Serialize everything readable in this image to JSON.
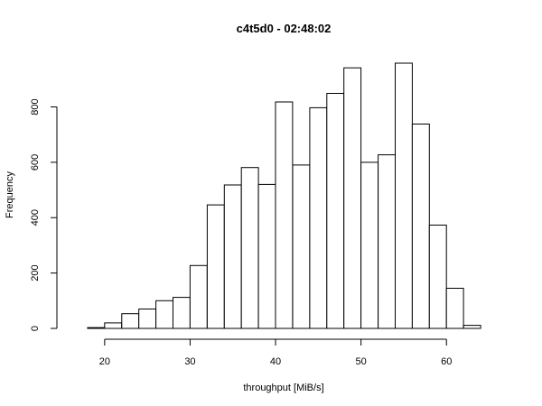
{
  "chart_data": {
    "type": "bar",
    "title": "c4t5d0 - 02:48:02",
    "xlabel": "throughput [MiB/s]",
    "ylabel": "Frequency",
    "bin_width": 2,
    "bins": [
      {
        "x0": 16,
        "x1": 18,
        "count": 0
      },
      {
        "x0": 18,
        "x1": 20,
        "count": 3
      },
      {
        "x0": 20,
        "x1": 22,
        "count": 20
      },
      {
        "x0": 22,
        "x1": 24,
        "count": 53
      },
      {
        "x0": 24,
        "x1": 26,
        "count": 70
      },
      {
        "x0": 26,
        "x1": 28,
        "count": 100
      },
      {
        "x0": 28,
        "x1": 30,
        "count": 112
      },
      {
        "x0": 30,
        "x1": 32,
        "count": 227
      },
      {
        "x0": 32,
        "x1": 34,
        "count": 446
      },
      {
        "x0": 34,
        "x1": 36,
        "count": 518
      },
      {
        "x0": 36,
        "x1": 38,
        "count": 581
      },
      {
        "x0": 38,
        "x1": 40,
        "count": 520
      },
      {
        "x0": 40,
        "x1": 42,
        "count": 818
      },
      {
        "x0": 42,
        "x1": 44,
        "count": 590
      },
      {
        "x0": 44,
        "x1": 46,
        "count": 797
      },
      {
        "x0": 46,
        "x1": 48,
        "count": 849
      },
      {
        "x0": 48,
        "x1": 50,
        "count": 941
      },
      {
        "x0": 50,
        "x1": 52,
        "count": 600
      },
      {
        "x0": 52,
        "x1": 54,
        "count": 627
      },
      {
        "x0": 54,
        "x1": 56,
        "count": 958
      },
      {
        "x0": 56,
        "x1": 58,
        "count": 738
      },
      {
        "x0": 58,
        "x1": 60,
        "count": 373
      },
      {
        "x0": 60,
        "x1": 62,
        "count": 145
      },
      {
        "x0": 62,
        "x1": 64,
        "count": 11
      },
      {
        "x0": 64,
        "x1": 66,
        "count": 0
      }
    ],
    "x_ticks": [
      20,
      30,
      40,
      50,
      60
    ],
    "y_ticks": [
      0,
      200,
      400,
      600,
      800
    ],
    "xlim": [
      16,
      66
    ],
    "ylim": [
      0,
      958
    ],
    "grid": false,
    "colors": {
      "bar_fill": "#ffffff",
      "bar_stroke": "#000000"
    }
  }
}
